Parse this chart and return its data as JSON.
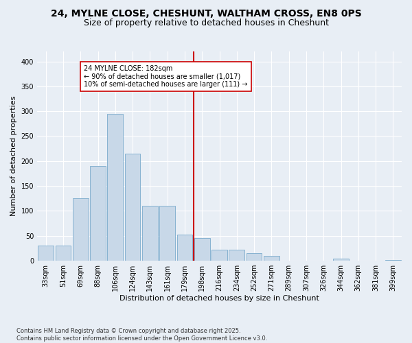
{
  "title": "24, MYLNE CLOSE, CHESHUNT, WALTHAM CROSS, EN8 0PS",
  "subtitle": "Size of property relative to detached houses in Cheshunt",
  "xlabel": "Distribution of detached houses by size in Cheshunt",
  "ylabel": "Number of detached properties",
  "categories": [
    "33sqm",
    "51sqm",
    "69sqm",
    "88sqm",
    "106sqm",
    "124sqm",
    "143sqm",
    "161sqm",
    "179sqm",
    "198sqm",
    "216sqm",
    "234sqm",
    "252sqm",
    "271sqm",
    "289sqm",
    "307sqm",
    "326sqm",
    "344sqm",
    "362sqm",
    "381sqm",
    "399sqm"
  ],
  "values": [
    30,
    30,
    125,
    190,
    295,
    215,
    110,
    110,
    52,
    45,
    22,
    22,
    15,
    10,
    0,
    0,
    0,
    4,
    0,
    0,
    2
  ],
  "bar_color": "#c8d8e8",
  "bar_edge_color": "#7aabcc",
  "vline_color": "#cc0000",
  "annotation_text": "24 MYLNE CLOSE: 182sqm\n← 90% of detached houses are smaller (1,017)\n10% of semi-detached houses are larger (111) →",
  "annotation_box_color": "#ffffff",
  "annotation_box_edge": "#cc0000",
  "ylim": [
    0,
    420
  ],
  "yticks": [
    0,
    50,
    100,
    150,
    200,
    250,
    300,
    350,
    400
  ],
  "background_color": "#e8eef5",
  "footer": "Contains HM Land Registry data © Crown copyright and database right 2025.\nContains public sector information licensed under the Open Government Licence v3.0.",
  "title_fontsize": 10,
  "subtitle_fontsize": 9,
  "axis_label_fontsize": 8,
  "tick_fontsize": 7,
  "footer_fontsize": 6,
  "ylabel_fontsize": 8
}
